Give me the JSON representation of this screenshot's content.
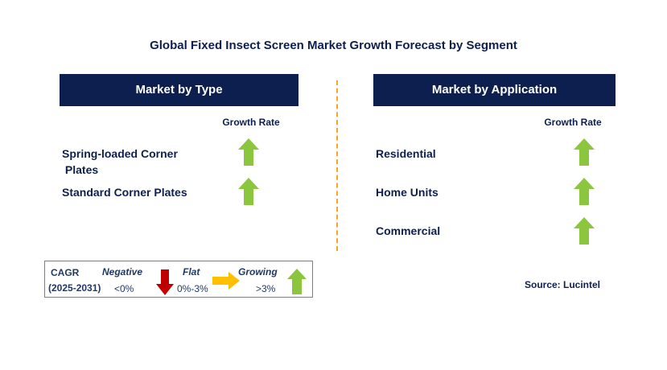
{
  "title": "Global Fixed Insect Screen Market Growth Forecast by Segment",
  "colors": {
    "header_bg": "#0d1f4e",
    "text": "#0d1f4e",
    "divider": "#f5a623",
    "growing_arrow": "#8cc63f",
    "negative_arrow": "#c00000",
    "flat_arrow": "#ffc000"
  },
  "left_panel": {
    "header": "Market by Type",
    "growth_rate_label": "Growth Rate",
    "rows": [
      {
        "label_line1": "Spring-loaded Corner",
        "label_line2": " Plates",
        "indicator": "growing-arrow-icon"
      },
      {
        "label_line1": "Standard Corner Plates",
        "label_line2": "",
        "indicator": "growing-arrow-icon"
      }
    ]
  },
  "right_panel": {
    "header": "Market by Application",
    "growth_rate_label": "Growth Rate",
    "rows": [
      {
        "label": "Residential",
        "indicator": "growing-arrow-icon"
      },
      {
        "label": "Home Units",
        "indicator": "growing-arrow-icon"
      },
      {
        "label": "Commercial",
        "indicator": "growing-arrow-icon"
      }
    ]
  },
  "legend": {
    "cagr_label": "CAGR",
    "period": "(2025-2031)",
    "negative_label": "Negative",
    "negative_value": "<0%",
    "flat_label": "Flat",
    "flat_value": "0%-3%",
    "growing_label": "Growing",
    "growing_value": ">3%"
  },
  "source": "Source: Lucintel"
}
